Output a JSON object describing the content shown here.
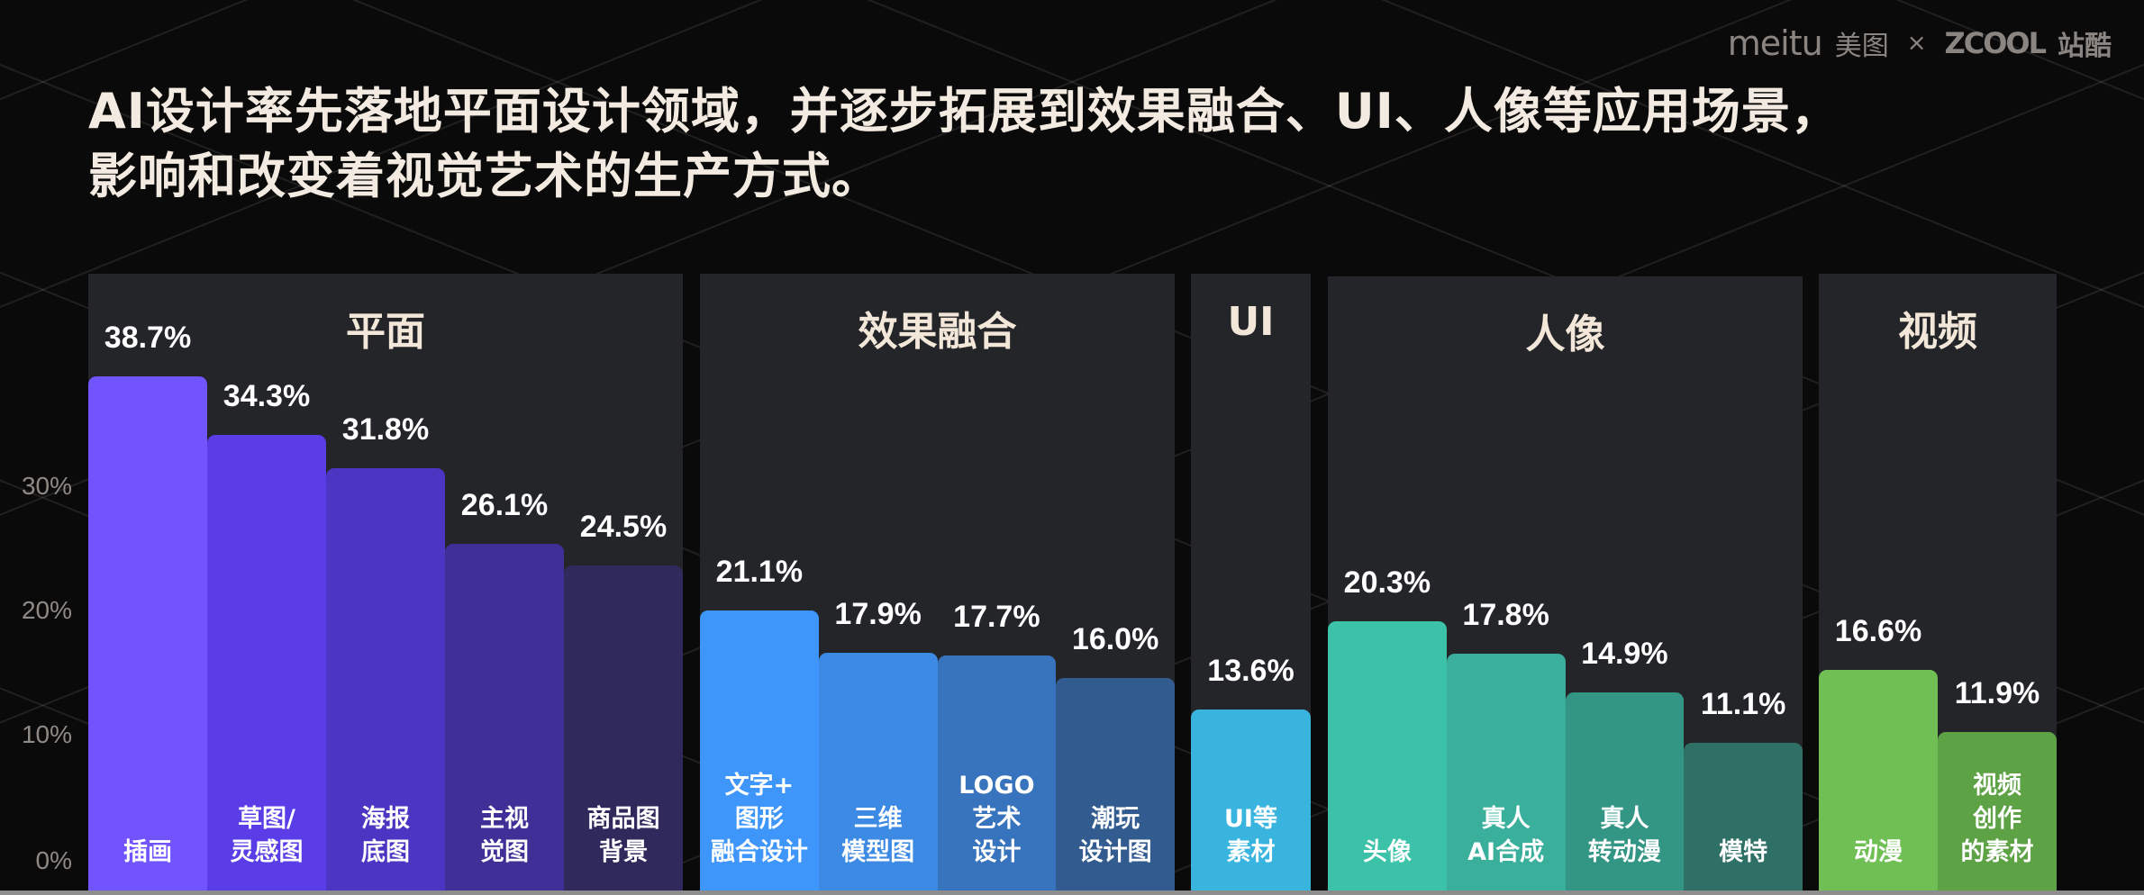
{
  "brand": {
    "meitu": "meitu",
    "meitu_cn": "美图",
    "separator": "×",
    "zcool": "ZCOOL",
    "zcool_cn": "站酷"
  },
  "title": {
    "line1": "AI设计率先落地平面设计领域，并逐步拓展到效果融合、UI、人像等应用场景，",
    "line2": "影响和改变着视觉艺术的生产方式。"
  },
  "y_axis": {
    "ticks": [
      "30%",
      "20%",
      "10%",
      "0%"
    ]
  },
  "chart_data": {
    "type": "bar",
    "title": "AI设计率先落地平面设计领域，并逐步拓展到效果融合、UI、人像等应用场景，影响和改变着视觉艺术的生产方式。",
    "xlabel": "",
    "ylabel": "",
    "ylim": [
      0,
      40
    ],
    "yticks": [
      "0%",
      "10%",
      "20%",
      "30%"
    ],
    "grid": false,
    "legend": "none",
    "unit": "%",
    "groups": [
      {
        "name": "平面",
        "color_family": "purple",
        "bars": [
          {
            "label": "插画",
            "value": 38.7,
            "display": "38.7%",
            "color": "#7254fe"
          },
          {
            "label": "草图/\n灵感图",
            "value": 34.3,
            "display": "34.3%",
            "color": "#5a3de6"
          },
          {
            "label": "海报\n底图",
            "value": 31.8,
            "display": "31.8%",
            "color": "#4b35c2"
          },
          {
            "label": "主视\n觉图",
            "value": 26.1,
            "display": "26.1%",
            "color": "#3f2f96"
          },
          {
            "label": "商品图\n背景",
            "value": 24.5,
            "display": "24.5%",
            "color": "#30295c"
          }
        ]
      },
      {
        "name": "效果融合",
        "color_family": "blue",
        "bars": [
          {
            "label": "文字+\n图形\n融合设计",
            "value": 21.1,
            "display": "21.1%",
            "color": "#3e96fb"
          },
          {
            "label": "三维\n模型图",
            "value": 17.9,
            "display": "17.9%",
            "color": "#3c8ae4"
          },
          {
            "label": "LOGO\n艺术\n设计",
            "value": 17.7,
            "display": "17.7%",
            "color": "#3874be"
          },
          {
            "label": "潮玩\n设计图",
            "value": 16.0,
            "display": "16.0%",
            "color": "#325c8f"
          }
        ]
      },
      {
        "name": "UI",
        "color_family": "cyan",
        "bars": [
          {
            "label": "UI等\n素材",
            "value": 13.6,
            "display": "13.6%",
            "color": "#38b4df"
          }
        ]
      },
      {
        "name": "人像",
        "color_family": "teal",
        "bars": [
          {
            "label": "头像",
            "value": 20.3,
            "display": "20.3%",
            "color": "#3bc2a9"
          },
          {
            "label": "真人\nAI合成",
            "value": 17.8,
            "display": "17.8%",
            "color": "#3ab09c"
          },
          {
            "label": "真人\n转动漫",
            "value": 14.9,
            "display": "14.9%",
            "color": "#339584"
          },
          {
            "label": "模特",
            "value": 11.1,
            "display": "11.1%",
            "color": "#2f7066"
          }
        ]
      },
      {
        "name": "视频",
        "color_family": "green",
        "bars": [
          {
            "label": "动漫",
            "value": 16.6,
            "display": "16.6%",
            "color": "#6fbf55"
          },
          {
            "label": "视频\n创作\n的素材",
            "value": 11.9,
            "display": "11.9%",
            "color": "#5ea246"
          }
        ]
      }
    ]
  },
  "colors": {
    "background": "#0b0a0a",
    "panel": "#232528",
    "title_text": "#f3ebe1",
    "axis_text": "#8f8a85"
  }
}
